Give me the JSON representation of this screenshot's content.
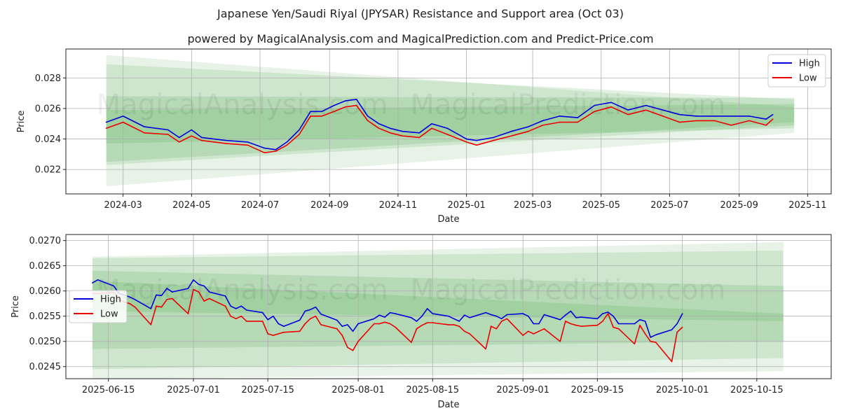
{
  "header": {
    "title": "Japanese Yen/Saudi Riyal (JPYSAR) Resistance and Support area (Oct 03)",
    "subtitle": "powered by MagicalAnalysis.com and MagicalPrediction.com and Predict-Price.com"
  },
  "watermarks": [
    "MagicalAnalysis.com",
    "MagicalPrediction.com"
  ],
  "colors": {
    "high": "#0000dd",
    "low": "#ee0000",
    "band": "#3a9b3a"
  },
  "chart_data": [
    {
      "type": "line",
      "title": "",
      "xlabel": "Date",
      "ylabel": "Price",
      "xlim": [
        "2024-01-10",
        "2025-11-22"
      ],
      "ylim": [
        0.0204,
        0.0299
      ],
      "x_ticks": [
        {
          "date": "2024-03-01",
          "label": "2024-03"
        },
        {
          "date": "2024-05-01",
          "label": "2024-05"
        },
        {
          "date": "2024-07-01",
          "label": "2024-07"
        },
        {
          "date": "2024-09-01",
          "label": "2024-09"
        },
        {
          "date": "2024-11-01",
          "label": "2024-11"
        },
        {
          "date": "2025-01-01",
          "label": "2025-01"
        },
        {
          "date": "2025-03-01",
          "label": "2025-03"
        },
        {
          "date": "2025-05-01",
          "label": "2025-05"
        },
        {
          "date": "2025-07-01",
          "label": "2025-07"
        },
        {
          "date": "2025-09-01",
          "label": "2025-09"
        },
        {
          "date": "2025-11-01",
          "label": "2025-11"
        }
      ],
      "y_ticks": [
        0.022,
        0.024,
        0.026,
        0.028
      ],
      "y_tick_labels": [
        "0.022",
        "0.024",
        "0.026",
        "0.028"
      ],
      "legend": {
        "position": "top-right",
        "entries": [
          "High",
          "Low"
        ]
      },
      "grid": true,
      "bands": [
        {
          "x": [
            "2024-02-15",
            "2025-10-20"
          ],
          "upper": [
            0.0295,
            0.0261
          ],
          "lower": [
            0.0209,
            0.0244
          ],
          "opacity": 0.12
        },
        {
          "x": [
            "2024-02-15",
            "2025-10-20"
          ],
          "upper": [
            0.0289,
            0.0266
          ],
          "lower": [
            0.0223,
            0.0249
          ],
          "opacity": 0.14
        },
        {
          "x": [
            "2024-02-15",
            "2025-10-20"
          ],
          "upper": [
            0.0268,
            0.0267
          ],
          "lower": [
            0.0225,
            0.0251
          ],
          "opacity": 0.16
        },
        {
          "x": [
            "2024-02-15",
            "2025-10-20"
          ],
          "upper": [
            0.0259,
            0.0263
          ],
          "lower": [
            0.0237,
            0.0247
          ],
          "opacity": 0.16
        }
      ],
      "series": [
        {
          "name": "High",
          "x": [
            "2024-02-15",
            "2024-03-01",
            "2024-03-20",
            "2024-04-10",
            "2024-04-20",
            "2024-05-01",
            "2024-05-10",
            "2024-06-01",
            "2024-06-20",
            "2024-07-05",
            "2024-07-15",
            "2024-07-25",
            "2024-08-05",
            "2024-08-15",
            "2024-08-25",
            "2024-09-05",
            "2024-09-15",
            "2024-09-25",
            "2024-10-05",
            "2024-10-15",
            "2024-10-25",
            "2024-11-05",
            "2024-11-20",
            "2024-12-01",
            "2024-12-15",
            "2025-01-01",
            "2025-01-10",
            "2025-01-25",
            "2025-02-10",
            "2025-02-25",
            "2025-03-10",
            "2025-03-25",
            "2025-04-10",
            "2025-04-25",
            "2025-05-10",
            "2025-05-25",
            "2025-06-10",
            "2025-06-25",
            "2025-07-10",
            "2025-07-25",
            "2025-08-10",
            "2025-08-25",
            "2025-09-10",
            "2025-09-25",
            "2025-10-01"
          ],
          "values": [
            0.0251,
            0.0255,
            0.0248,
            0.0246,
            0.0241,
            0.0246,
            0.0241,
            0.0239,
            0.0238,
            0.0234,
            0.0233,
            0.0238,
            0.0246,
            0.0258,
            0.0258,
            0.0262,
            0.0265,
            0.0266,
            0.0255,
            0.025,
            0.0247,
            0.0245,
            0.0244,
            0.025,
            0.0247,
            0.024,
            0.0239,
            0.0241,
            0.0245,
            0.0248,
            0.0252,
            0.0255,
            0.0254,
            0.0262,
            0.0264,
            0.0259,
            0.0262,
            0.0259,
            0.0256,
            0.0255,
            0.0255,
            0.0255,
            0.0255,
            0.0253,
            0.0256
          ]
        },
        {
          "name": "Low",
          "x": [
            "2024-02-15",
            "2024-03-01",
            "2024-03-20",
            "2024-04-10",
            "2024-04-20",
            "2024-05-01",
            "2024-05-10",
            "2024-06-01",
            "2024-06-20",
            "2024-07-05",
            "2024-07-15",
            "2024-07-25",
            "2024-08-05",
            "2024-08-15",
            "2024-08-25",
            "2024-09-05",
            "2024-09-15",
            "2024-09-25",
            "2024-10-05",
            "2024-10-15",
            "2024-10-25",
            "2024-11-05",
            "2024-11-20",
            "2024-12-01",
            "2024-12-15",
            "2025-01-01",
            "2025-01-10",
            "2025-01-25",
            "2025-02-10",
            "2025-02-25",
            "2025-03-10",
            "2025-03-25",
            "2025-04-10",
            "2025-04-25",
            "2025-05-10",
            "2025-05-25",
            "2025-06-10",
            "2025-06-25",
            "2025-07-10",
            "2025-07-25",
            "2025-08-10",
            "2025-08-25",
            "2025-09-10",
            "2025-09-25",
            "2025-10-01"
          ],
          "values": [
            0.0247,
            0.0251,
            0.0244,
            0.0243,
            0.0238,
            0.0242,
            0.0239,
            0.0237,
            0.0236,
            0.0231,
            0.0232,
            0.0236,
            0.0243,
            0.0255,
            0.0255,
            0.0258,
            0.0261,
            0.0262,
            0.0252,
            0.0247,
            0.0244,
            0.0242,
            0.0241,
            0.0247,
            0.0243,
            0.0238,
            0.0236,
            0.0239,
            0.0242,
            0.0245,
            0.0249,
            0.0251,
            0.0251,
            0.0258,
            0.0261,
            0.0256,
            0.0259,
            0.0255,
            0.0251,
            0.0252,
            0.0252,
            0.0249,
            0.0252,
            0.0249,
            0.0253
          ]
        }
      ]
    },
    {
      "type": "line",
      "title": "",
      "xlabel": "Date",
      "ylabel": "Price",
      "xlim": [
        "2025-06-07",
        "2025-10-29"
      ],
      "ylim": [
        0.02426,
        0.02712
      ],
      "x_ticks": [
        {
          "date": "2025-06-15",
          "label": "2025-06-15"
        },
        {
          "date": "2025-07-01",
          "label": "2025-07-01"
        },
        {
          "date": "2025-07-15",
          "label": "2025-07-15"
        },
        {
          "date": "2025-08-01",
          "label": "2025-08-01"
        },
        {
          "date": "2025-08-15",
          "label": "2025-08-15"
        },
        {
          "date": "2025-09-01",
          "label": "2025-09-01"
        },
        {
          "date": "2025-09-15",
          "label": "2025-09-15"
        },
        {
          "date": "2025-10-01",
          "label": "2025-10-01"
        },
        {
          "date": "2025-10-15",
          "label": "2025-10-15"
        }
      ],
      "y_ticks": [
        0.0245,
        0.025,
        0.0255,
        0.026,
        0.0265,
        0.027
      ],
      "y_tick_labels": [
        "0.0245",
        "0.0250",
        "0.0255",
        "0.0260",
        "0.0265",
        "0.0270"
      ],
      "legend": {
        "position": "center-left",
        "entries": [
          "High",
          "Low"
        ]
      },
      "grid": true,
      "bands": [
        {
          "x": [
            "2025-06-12",
            "2025-10-20"
          ],
          "upper": [
            0.02668,
            0.02697
          ],
          "lower": [
            0.02425,
            0.02441
          ],
          "opacity": 0.12
        },
        {
          "x": [
            "2025-06-12",
            "2025-10-20"
          ],
          "upper": [
            0.02665,
            0.0268
          ],
          "lower": [
            0.02445,
            0.02467
          ],
          "opacity": 0.14
        },
        {
          "x": [
            "2025-06-12",
            "2025-10-20"
          ],
          "upper": [
            0.0264,
            0.0261
          ],
          "lower": [
            0.02485,
            0.025
          ],
          "opacity": 0.16
        },
        {
          "x": [
            "2025-06-12",
            "2025-10-20"
          ],
          "upper": [
            0.0262,
            0.02555
          ],
          "lower": [
            0.0256,
            0.0254
          ],
          "opacity": 0.16
        }
      ],
      "series": [
        {
          "name": "High",
          "x": [
            "2025-06-12",
            "2025-06-13",
            "2025-06-16",
            "2025-06-17",
            "2025-06-18",
            "2025-06-19",
            "2025-06-20",
            "2025-06-23",
            "2025-06-24",
            "2025-06-25",
            "2025-06-26",
            "2025-06-27",
            "2025-06-30",
            "2025-07-01",
            "2025-07-02",
            "2025-07-03",
            "2025-07-04",
            "2025-07-07",
            "2025-07-08",
            "2025-07-09",
            "2025-07-10",
            "2025-07-11",
            "2025-07-14",
            "2025-07-15",
            "2025-07-16",
            "2025-07-17",
            "2025-07-18",
            "2025-07-21",
            "2025-07-22",
            "2025-07-23",
            "2025-07-24",
            "2025-07-25",
            "2025-07-28",
            "2025-07-29",
            "2025-07-30",
            "2025-07-31",
            "2025-08-01",
            "2025-08-04",
            "2025-08-05",
            "2025-08-06",
            "2025-08-07",
            "2025-08-08",
            "2025-08-11",
            "2025-08-12",
            "2025-08-13",
            "2025-08-14",
            "2025-08-15",
            "2025-08-18",
            "2025-08-19",
            "2025-08-20",
            "2025-08-21",
            "2025-08-22",
            "2025-08-25",
            "2025-08-26",
            "2025-08-27",
            "2025-08-28",
            "2025-08-29",
            "2025-09-01",
            "2025-09-02",
            "2025-09-03",
            "2025-09-04",
            "2025-09-05",
            "2025-09-08",
            "2025-09-09",
            "2025-09-10",
            "2025-09-11",
            "2025-09-12",
            "2025-09-15",
            "2025-09-16",
            "2025-09-17",
            "2025-09-18",
            "2025-09-19",
            "2025-09-22",
            "2025-09-23",
            "2025-09-24",
            "2025-09-25",
            "2025-09-26",
            "2025-09-29",
            "2025-09-30",
            "2025-10-01"
          ],
          "values": [
            0.02616,
            0.02622,
            0.0261,
            0.02595,
            0.02592,
            0.02588,
            0.02583,
            0.02565,
            0.02592,
            0.02591,
            0.02605,
            0.02598,
            0.02605,
            0.02622,
            0.02613,
            0.0261,
            0.02598,
            0.0259,
            0.0257,
            0.02565,
            0.0257,
            0.02562,
            0.02557,
            0.02543,
            0.0255,
            0.02535,
            0.0253,
            0.02542,
            0.0256,
            0.02563,
            0.02568,
            0.02554,
            0.02542,
            0.0253,
            0.02533,
            0.0252,
            0.02535,
            0.02545,
            0.02552,
            0.02548,
            0.02557,
            0.02555,
            0.02547,
            0.0254,
            0.0255,
            0.02565,
            0.02555,
            0.0255,
            0.02545,
            0.0254,
            0.02552,
            0.02547,
            0.02557,
            0.02553,
            0.0255,
            0.02545,
            0.02553,
            0.02555,
            0.0255,
            0.02535,
            0.02535,
            0.02553,
            0.02543,
            0.02552,
            0.0256,
            0.02547,
            0.02548,
            0.02545,
            0.02555,
            0.02558,
            0.0255,
            0.02535,
            0.02535,
            0.02543,
            0.0254,
            0.02508,
            0.02513,
            0.02523,
            0.02535,
            0.02555
          ]
        },
        {
          "name": "Low",
          "x": [
            "2025-06-12",
            "2025-06-13",
            "2025-06-16",
            "2025-06-17",
            "2025-06-18",
            "2025-06-19",
            "2025-06-20",
            "2025-06-23",
            "2025-06-24",
            "2025-06-25",
            "2025-06-26",
            "2025-06-27",
            "2025-06-30",
            "2025-07-01",
            "2025-07-02",
            "2025-07-03",
            "2025-07-04",
            "2025-07-07",
            "2025-07-08",
            "2025-07-09",
            "2025-07-10",
            "2025-07-11",
            "2025-07-14",
            "2025-07-15",
            "2025-07-16",
            "2025-07-17",
            "2025-07-18",
            "2025-07-21",
            "2025-07-22",
            "2025-07-23",
            "2025-07-24",
            "2025-07-25",
            "2025-07-28",
            "2025-07-29",
            "2025-07-30",
            "2025-07-31",
            "2025-08-01",
            "2025-08-04",
            "2025-08-05",
            "2025-08-06",
            "2025-08-07",
            "2025-08-08",
            "2025-08-11",
            "2025-08-12",
            "2025-08-13",
            "2025-08-14",
            "2025-08-15",
            "2025-08-18",
            "2025-08-19",
            "2025-08-20",
            "2025-08-21",
            "2025-08-22",
            "2025-08-25",
            "2025-08-26",
            "2025-08-27",
            "2025-08-28",
            "2025-08-29",
            "2025-09-01",
            "2025-09-02",
            "2025-09-03",
            "2025-09-04",
            "2025-09-05",
            "2025-09-08",
            "2025-09-09",
            "2025-09-10",
            "2025-09-11",
            "2025-09-12",
            "2025-09-15",
            "2025-09-16",
            "2025-09-17",
            "2025-09-18",
            "2025-09-19",
            "2025-09-22",
            "2025-09-23",
            "2025-09-24",
            "2025-09-25",
            "2025-09-26",
            "2025-09-29",
            "2025-09-30",
            "2025-10-01"
          ],
          "values": [
            0.02595,
            0.02595,
            0.02597,
            0.02582,
            0.02578,
            0.02575,
            0.02568,
            0.02533,
            0.0257,
            0.02568,
            0.02583,
            0.02585,
            0.02555,
            0.02603,
            0.02598,
            0.0258,
            0.02585,
            0.0257,
            0.0255,
            0.02545,
            0.0255,
            0.0254,
            0.0254,
            0.02515,
            0.02512,
            0.02515,
            0.02518,
            0.0252,
            0.02535,
            0.02545,
            0.0255,
            0.02533,
            0.02525,
            0.02512,
            0.02488,
            0.02482,
            0.025,
            0.02535,
            0.02535,
            0.02538,
            0.02535,
            0.02528,
            0.02498,
            0.02525,
            0.02532,
            0.02537,
            0.02537,
            0.02533,
            0.02533,
            0.0253,
            0.0252,
            0.02515,
            0.02485,
            0.0253,
            0.02525,
            0.0254,
            0.02545,
            0.02512,
            0.0252,
            0.02515,
            0.0252,
            0.02525,
            0.025,
            0.0254,
            0.02535,
            0.02532,
            0.0253,
            0.02532,
            0.0254,
            0.02555,
            0.02528,
            0.02525,
            0.02495,
            0.02532,
            0.02515,
            0.025,
            0.02498,
            0.0246,
            0.02518,
            0.02528
          ]
        }
      ]
    }
  ]
}
